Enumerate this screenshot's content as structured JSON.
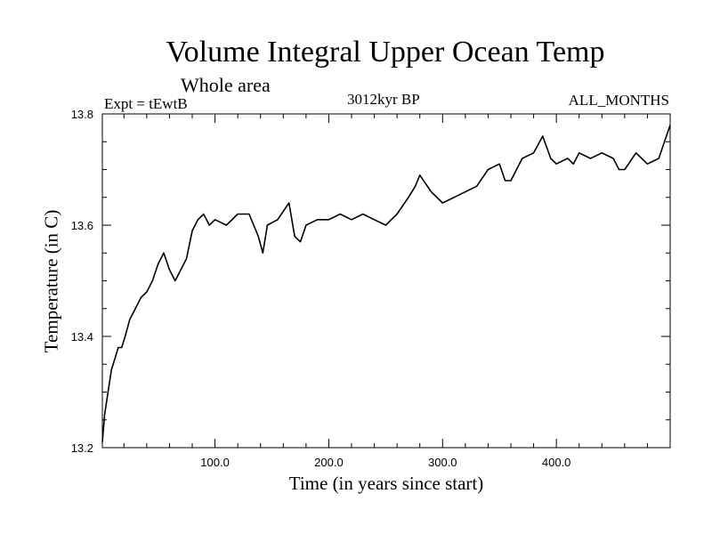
{
  "chart_data": {
    "type": "line",
    "title": "Volume Integral Upper Ocean Temp",
    "subtitle": "Whole area",
    "experiment": "Expt = tEwtB",
    "period": "3012kyr BP",
    "months": "ALL_MONTHS",
    "xlabel": "Time (in years since start)",
    "ylabel": "Temperature (in C)",
    "xlim": [
      1,
      500
    ],
    "ylim": [
      13.2,
      13.8
    ],
    "xticks": [
      100,
      200,
      300,
      400
    ],
    "xtick_labels": [
      "100.0",
      "200.0",
      "300.0",
      "400.0"
    ],
    "yticks": [
      13.2,
      13.4,
      13.6,
      13.8
    ],
    "ytick_labels": [
      "13.2",
      "13.4",
      "13.6",
      "13.8"
    ],
    "grid": false,
    "series": [
      {
        "name": "Volume Integral Upper Ocean Temp",
        "color": "#000000",
        "x": [
          1,
          3,
          6,
          9,
          12,
          15,
          18,
          21,
          25,
          30,
          35,
          40,
          45,
          50,
          55,
          60,
          65,
          70,
          75,
          80,
          85,
          90,
          95,
          100,
          110,
          120,
          130,
          138,
          142,
          146,
          155,
          165,
          170,
          175,
          180,
          190,
          200,
          210,
          220,
          230,
          240,
          250,
          260,
          270,
          276,
          280,
          290,
          300,
          310,
          320,
          330,
          340,
          350,
          355,
          360,
          370,
          380,
          388,
          395,
          400,
          410,
          415,
          420,
          430,
          440,
          450,
          455,
          460,
          470,
          480,
          490,
          495,
          500
        ],
        "y": [
          13.21,
          13.26,
          13.3,
          13.34,
          13.36,
          13.38,
          13.38,
          13.4,
          13.43,
          13.45,
          13.47,
          13.48,
          13.5,
          13.53,
          13.55,
          13.52,
          13.5,
          13.52,
          13.54,
          13.59,
          13.61,
          13.62,
          13.6,
          13.61,
          13.6,
          13.62,
          13.62,
          13.58,
          13.55,
          13.6,
          13.61,
          13.64,
          13.58,
          13.57,
          13.6,
          13.61,
          13.61,
          13.62,
          13.61,
          13.62,
          13.61,
          13.6,
          13.62,
          13.65,
          13.67,
          13.69,
          13.66,
          13.64,
          13.65,
          13.66,
          13.67,
          13.7,
          13.71,
          13.68,
          13.68,
          13.72,
          13.73,
          13.76,
          13.72,
          13.71,
          13.72,
          13.71,
          13.73,
          13.72,
          13.73,
          13.72,
          13.7,
          13.7,
          13.73,
          13.71,
          13.72,
          13.75,
          13.78
        ]
      }
    ]
  }
}
